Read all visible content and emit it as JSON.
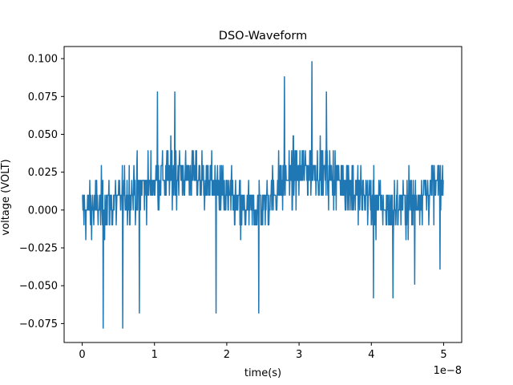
{
  "chart_data": {
    "type": "line",
    "title": "DSO-Waveform",
    "xlabel": "time(s)",
    "ylabel": "voltage (VOLT)",
    "x_offset_label": "1e−8",
    "xlim": [
      -2.5e-09,
      5.25e-08
    ],
    "ylim": [
      -0.0875,
      0.108
    ],
    "xticks": [
      0,
      1e-08,
      2e-08,
      3e-08,
      4e-08,
      5e-08
    ],
    "xtick_labels": [
      "0",
      "1",
      "2",
      "3",
      "4",
      "5"
    ],
    "yticks": [
      -0.075,
      -0.05,
      -0.025,
      0.0,
      0.025,
      0.05,
      0.075,
      0.1
    ],
    "ytick_labels": [
      "−0.075",
      "−0.050",
      "−0.025",
      "0.000",
      "0.025",
      "0.050",
      "0.075",
      "0.100"
    ],
    "grid": false,
    "legend": "none",
    "series": [
      {
        "color": "#1f77b4",
        "x_start": 0,
        "x_end": 5e-08,
        "quant_step": 0.0098,
        "envelope": [
          {
            "x": 0.0,
            "y": 0.0
          },
          {
            "x": 5e-09,
            "y": 0.005
          },
          {
            "x": 1e-08,
            "y": 0.02
          },
          {
            "x": 1.4e-08,
            "y": 0.025
          },
          {
            "x": 1.8e-08,
            "y": 0.018
          },
          {
            "x": 2.2e-08,
            "y": 0.0
          },
          {
            "x": 2.5e-08,
            "y": 0.003
          },
          {
            "x": 2.8e-08,
            "y": 0.02
          },
          {
            "x": 3.2e-08,
            "y": 0.027
          },
          {
            "x": 3.6e-08,
            "y": 0.02
          },
          {
            "x": 4e-08,
            "y": 0.005
          },
          {
            "x": 4.3e-08,
            "y": 0.0
          },
          {
            "x": 4.7e-08,
            "y": 0.01
          },
          {
            "x": 5e-08,
            "y": 0.018
          }
        ],
        "spikes": [
          {
            "x": 2.9e-09,
            "y": -0.078
          },
          {
            "x": 5.6e-09,
            "y": -0.078
          },
          {
            "x": 7.9e-09,
            "y": -0.068
          },
          {
            "x": 1.85e-08,
            "y": -0.068
          },
          {
            "x": 2.44e-08,
            "y": -0.068
          },
          {
            "x": 3.18e-08,
            "y": 0.098
          },
          {
            "x": 1.04e-08,
            "y": 0.078
          },
          {
            "x": 1.28e-08,
            "y": 0.078
          },
          {
            "x": 2.8e-08,
            "y": 0.088
          },
          {
            "x": 3.38e-08,
            "y": 0.078
          },
          {
            "x": 4.3e-08,
            "y": -0.058
          },
          {
            "x": 4.03e-08,
            "y": -0.058
          },
          {
            "x": 4.95e-08,
            "y": -0.039
          },
          {
            "x": 4.6e-08,
            "y": -0.049
          }
        ]
      }
    ]
  }
}
